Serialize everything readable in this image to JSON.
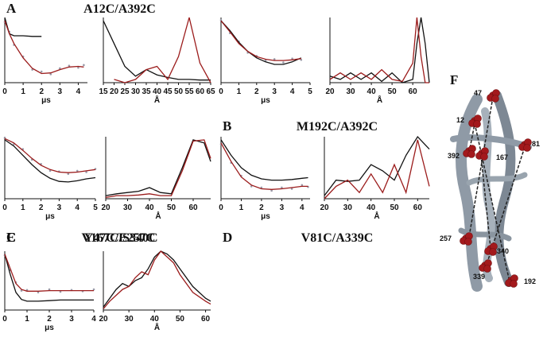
{
  "chart_data": [
    {
      "type": "line",
      "panel": "A",
      "title": "A12C/A392C",
      "xlabel": "μs",
      "xlim": [
        0,
        4.5
      ],
      "ylim": [
        0,
        1
      ],
      "xticks": [
        0,
        1,
        2,
        3,
        4
      ],
      "x": [
        0,
        0.25,
        0.5,
        1,
        1.5,
        2,
        2.5,
        3,
        3.5,
        4,
        4.3
      ],
      "series": [
        {
          "color": "#9a9aa8",
          "marker": "dots",
          "values": [
            0.93,
            0.78,
            0.58,
            0.4,
            0.2,
            0.17,
            0.13,
            0.22,
            0.26,
            0.23,
            0.27
          ]
        },
        {
          "color": "#111111",
          "values": [
            1,
            0.75,
            0.72,
            0.72,
            0.71,
            0.71,
            null,
            null,
            null,
            null,
            null
          ]
        },
        {
          "color": "#9b1b1b",
          "values": [
            0.95,
            0.75,
            0.6,
            0.38,
            0.22,
            0.14,
            0.15,
            0.2,
            0.24,
            0.25,
            0.24
          ]
        }
      ]
    },
    {
      "type": "line",
      "xlabel": "Å",
      "xlim": [
        15,
        65
      ],
      "ylim": [
        0,
        1
      ],
      "xticks": [
        15,
        20,
        25,
        30,
        35,
        40,
        45,
        50,
        55,
        60,
        65
      ],
      "x": [
        15,
        20,
        25,
        30,
        35,
        40,
        45,
        50,
        55,
        60,
        65
      ],
      "series": [
        {
          "color": "#111111",
          "values": [
            0.95,
            0.6,
            0.25,
            0.1,
            0.2,
            0.12,
            0.08,
            0.05,
            0.05,
            0.04,
            0.04
          ]
        },
        {
          "color": "#9b1b1b",
          "values": [
            null,
            0.05,
            0,
            0.05,
            0.2,
            0.25,
            0.05,
            0.4,
            1,
            0.3,
            0
          ]
        }
      ]
    },
    {
      "type": "line",
      "panel": "B",
      "title": "M192C/A392C",
      "xlabel": "μs",
      "xlim": [
        0,
        5
      ],
      "ylim": [
        0,
        1
      ],
      "xticks": [
        0,
        1,
        2,
        3,
        4,
        5
      ],
      "x": [
        0,
        0.5,
        1,
        1.5,
        2,
        2.5,
        3,
        3.5,
        4,
        4.5
      ],
      "series": [
        {
          "color": "#9a9aa8",
          "marker": "dots",
          "values": [
            0.96,
            0.76,
            0.63,
            0.46,
            0.41,
            0.34,
            0.36,
            0.31,
            0.37,
            0.35
          ]
        },
        {
          "color": "#111111",
          "values": [
            0.95,
            0.8,
            0.62,
            0.48,
            0.38,
            0.32,
            0.28,
            0.28,
            0.32,
            0.38
          ]
        },
        {
          "color": "#9b1b1b",
          "values": [
            0.95,
            0.78,
            0.6,
            0.48,
            0.4,
            0.36,
            0.34,
            0.34,
            0.35,
            0.37
          ]
        }
      ]
    },
    {
      "type": "line",
      "xlabel": "Å",
      "xlim": [
        20,
        68
      ],
      "ylim": [
        0,
        1
      ],
      "xticks": [
        20,
        30,
        40,
        50,
        60
      ],
      "x": [
        20,
        25,
        30,
        35,
        40,
        45,
        50,
        55,
        60,
        62,
        64,
        66,
        68
      ],
      "series": [
        {
          "color": "#111111",
          "values": [
            0.1,
            0.05,
            0.15,
            0.05,
            0.15,
            0.02,
            0.15,
            0,
            0.05,
            0.6,
            1,
            0.6,
            0
          ]
        },
        {
          "color": "#9b1b1b",
          "values": [
            0.05,
            0.15,
            0.05,
            0.15,
            0.05,
            0.2,
            0.05,
            0.02,
            0.3,
            1,
            0.4,
            0,
            0
          ]
        }
      ]
    },
    {
      "type": "line",
      "panel": "C",
      "title": "Y47C/E257C",
      "xlabel": "μs",
      "xlim": [
        0,
        5
      ],
      "ylim": [
        0,
        1
      ],
      "xticks": [
        0,
        1,
        2,
        3,
        4,
        5
      ],
      "x": [
        0,
        0.5,
        1,
        1.5,
        2,
        2.5,
        3,
        3.5,
        4,
        4.5,
        5
      ],
      "series": [
        {
          "color": "#9a9aa8",
          "marker": "dots",
          "values": [
            0.98,
            0.88,
            0.8,
            0.63,
            0.56,
            0.45,
            0.44,
            0.4,
            0.45,
            0.43,
            0.48
          ]
        },
        {
          "color": "#111111",
          "values": [
            0.95,
            0.85,
            0.7,
            0.55,
            0.42,
            0.33,
            0.28,
            0.27,
            0.29,
            0.32,
            0.34
          ]
        },
        {
          "color": "#9b1b1b",
          "values": [
            0.97,
            0.9,
            0.78,
            0.65,
            0.54,
            0.47,
            0.43,
            0.42,
            0.43,
            0.45,
            0.47
          ]
        }
      ]
    },
    {
      "type": "line",
      "xlabel": "Å",
      "xlim": [
        20,
        68
      ],
      "ylim": [
        0,
        1
      ],
      "xticks": [
        20,
        30,
        40,
        50,
        60
      ],
      "x": [
        20,
        25,
        30,
        35,
        40,
        45,
        50,
        55,
        60,
        65,
        68
      ],
      "series": [
        {
          "color": "#111111",
          "values": [
            0.05,
            0.08,
            0.1,
            0.12,
            0.18,
            0.1,
            0.08,
            0.5,
            0.95,
            0.9,
            0.6
          ]
        },
        {
          "color": "#9b1b1b",
          "values": [
            0.02,
            0.05,
            0.05,
            0.06,
            0.08,
            0.05,
            0.05,
            0.45,
            0.93,
            0.95,
            0.65
          ]
        }
      ]
    },
    {
      "type": "line",
      "panel": "D",
      "title": "V81C/A339C",
      "xlabel": "μs",
      "xlim": [
        0,
        4.4
      ],
      "ylim": [
        0,
        1
      ],
      "xticks": [
        0,
        1,
        2,
        3,
        4
      ],
      "x": [
        0,
        0.5,
        1,
        1.5,
        2,
        2.5,
        3,
        3.5,
        4,
        4.3
      ],
      "series": [
        {
          "color": "#9a9aa8",
          "marker": "dots",
          "values": [
            0.88,
            0.58,
            0.37,
            0.2,
            0.18,
            0.13,
            0.18,
            0.16,
            0.22,
            0.19
          ]
        },
        {
          "color": "#111111",
          "values": [
            0.95,
            0.7,
            0.5,
            0.38,
            0.32,
            0.3,
            0.3,
            0.31,
            0.33,
            0.34
          ]
        },
        {
          "color": "#9b1b1b",
          "values": [
            0.9,
            0.6,
            0.35,
            0.22,
            0.16,
            0.15,
            0.16,
            0.18,
            0.2,
            0.2
          ]
        }
      ]
    },
    {
      "type": "line",
      "xlabel": "Å",
      "xlim": [
        20,
        65
      ],
      "ylim": [
        0,
        1
      ],
      "xticks": [
        20,
        30,
        40,
        50,
        60
      ],
      "x": [
        20,
        25,
        30,
        35,
        40,
        45,
        50,
        55,
        60,
        65
      ],
      "series": [
        {
          "color": "#111111",
          "values": [
            0.05,
            0.3,
            0.28,
            0.3,
            0.55,
            0.45,
            0.3,
            0.7,
            1,
            0.8
          ]
        },
        {
          "color": "#9b1b1b",
          "values": [
            0,
            0.2,
            0.3,
            0.1,
            0.4,
            0.1,
            0.55,
            0.1,
            0.95,
            0.2
          ]
        }
      ]
    },
    {
      "type": "line",
      "panel": "E",
      "title": "V167C/S340C",
      "xlabel": "μs",
      "xlim": [
        0,
        4
      ],
      "ylim": [
        0,
        1
      ],
      "xticks": [
        0,
        1,
        2,
        3,
        4
      ],
      "x": [
        0,
        0.25,
        0.5,
        0.75,
        1,
        1.5,
        2,
        2.5,
        3,
        3.5,
        4
      ],
      "series": [
        {
          "color": "#9a9aa8",
          "marker": "dots",
          "values": [
            0.93,
            0.68,
            0.47,
            0.33,
            0.34,
            0.3,
            0.35,
            0.31,
            0.34,
            0.32,
            0.35
          ]
        },
        {
          "color": "#111111",
          "values": [
            0.95,
            0.6,
            0.3,
            0.18,
            0.15,
            0.15,
            0.16,
            0.17,
            0.17,
            0.17,
            0.17
          ]
        },
        {
          "color": "#9b1b1b",
          "values": [
            0.95,
            0.7,
            0.45,
            0.35,
            0.32,
            0.32,
            0.33,
            0.33,
            0.33,
            0.33,
            0.33
          ]
        }
      ]
    },
    {
      "type": "line",
      "xlabel": "Å",
      "xlim": [
        20,
        62
      ],
      "ylim": [
        0,
        1
      ],
      "xticks": [
        20,
        30,
        40,
        50,
        60
      ],
      "x": [
        20,
        22.5,
        25,
        27.5,
        30,
        32.5,
        35,
        37.5,
        40,
        42.5,
        45,
        47.5,
        50,
        55,
        60,
        62
      ],
      "series": [
        {
          "color": "#111111",
          "values": [
            0.05,
            0.2,
            0.35,
            0.45,
            0.4,
            0.5,
            0.55,
            0.7,
            0.9,
            1,
            0.95,
            0.85,
            0.7,
            0.4,
            0.2,
            0.15
          ]
        },
        {
          "color": "#9b1b1b",
          "values": [
            0.02,
            0.15,
            0.25,
            0.35,
            0.4,
            0.55,
            0.65,
            0.6,
            0.85,
            1,
            0.9,
            0.8,
            0.6,
            0.3,
            0.15,
            0.1
          ]
        }
      ]
    }
  ],
  "structure": {
    "panel": "F",
    "residues": [
      "47",
      "12",
      "81",
      "392",
      "167",
      "257",
      "340",
      "339",
      "192"
    ]
  }
}
